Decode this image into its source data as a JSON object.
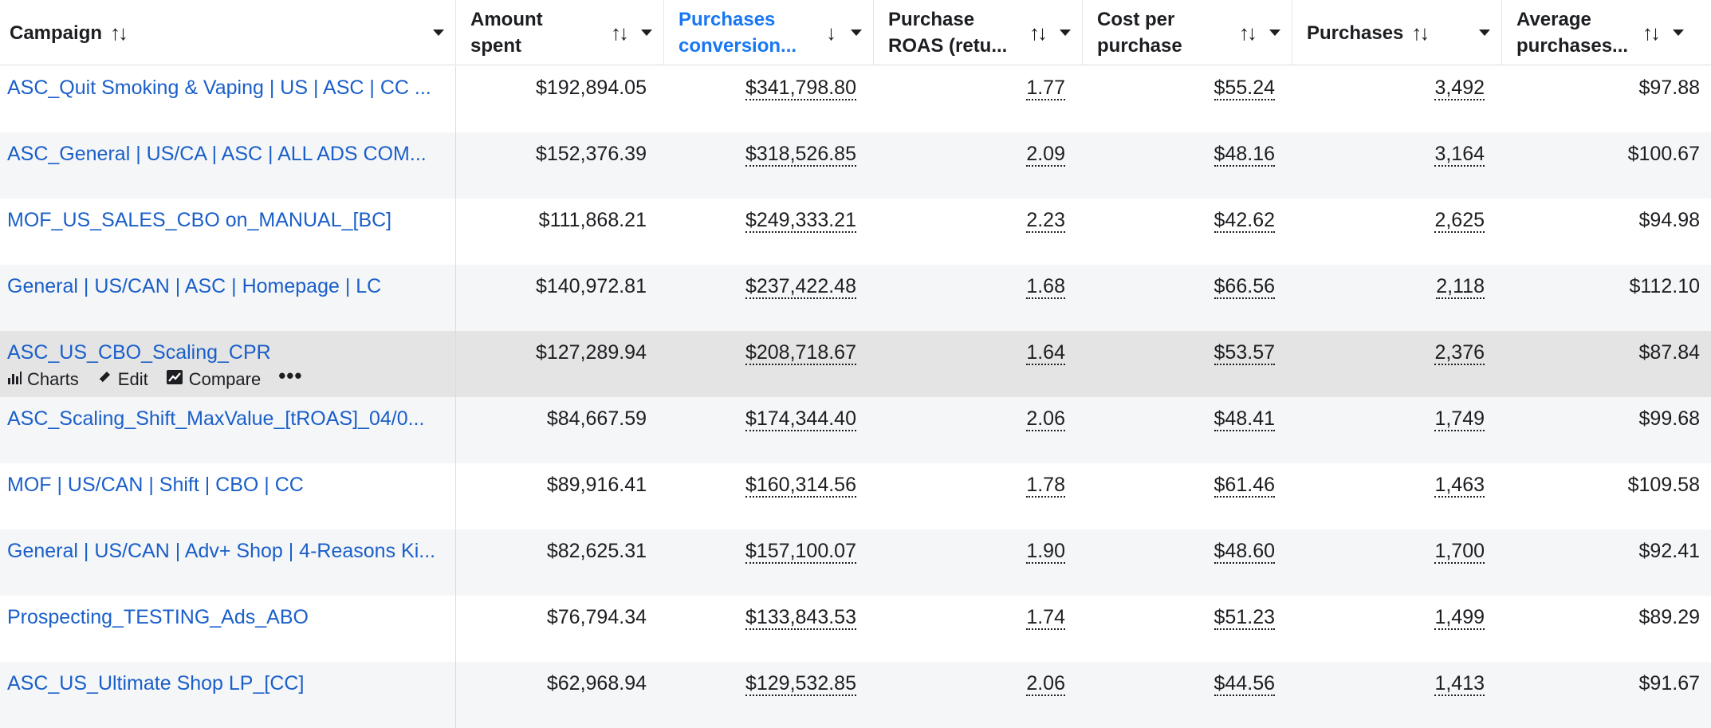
{
  "header": {
    "columns": [
      {
        "label": "Campaign",
        "sort": "both",
        "active": false
      },
      {
        "label": "Amount\nspent",
        "sort": "both",
        "active": false
      },
      {
        "label": "Purchases\nconversion...",
        "sort": "down",
        "active": true
      },
      {
        "label": "Purchase\nROAS (retu...",
        "sort": "both",
        "active": false
      },
      {
        "label": "Cost per\npurchase",
        "sort": "both",
        "active": false
      },
      {
        "label": "Purchases",
        "sort": "both",
        "active": false
      },
      {
        "label": "Average\npurchases...",
        "sort": "both",
        "active": false
      }
    ]
  },
  "row_actions": {
    "charts": "Charts",
    "edit": "Edit",
    "compare": "Compare",
    "more": "•••"
  },
  "rows": [
    {
      "campaign": "ASC_Quit Smoking & Vaping | US | ASC | CC ...",
      "amount_spent": "$192,894.05",
      "conversion_value": "$341,798.80",
      "roas": "1.77",
      "cost_per_purchase": "$55.24",
      "purchases": "3,492",
      "avg_value": "$97.88"
    },
    {
      "campaign": "ASC_General | US/CA | ASC | ALL ADS COM...",
      "amount_spent": "$152,376.39",
      "conversion_value": "$318,526.85",
      "roas": "2.09",
      "cost_per_purchase": "$48.16",
      "purchases": "3,164",
      "avg_value": "$100.67"
    },
    {
      "campaign": "MOF_US_SALES_CBO on_MANUAL_[BC]",
      "amount_spent": "$111,868.21",
      "conversion_value": "$249,333.21",
      "roas": "2.23",
      "cost_per_purchase": "$42.62",
      "purchases": "2,625",
      "avg_value": "$94.98"
    },
    {
      "campaign": "General | US/CAN | ASC | Homepage | LC",
      "amount_spent": "$140,972.81",
      "conversion_value": "$237,422.48",
      "roas": "1.68",
      "cost_per_purchase": "$66.56",
      "purchases": "2,118",
      "avg_value": "$112.10"
    },
    {
      "campaign": "ASC_US_CBO_Scaling_CPR",
      "amount_spent": "$127,289.94",
      "conversion_value": "$208,718.67",
      "roas": "1.64",
      "cost_per_purchase": "$53.57",
      "purchases": "2,376",
      "avg_value": "$87.84"
    },
    {
      "campaign": "ASC_Scaling_Shift_MaxValue_[tROAS]_04/0...",
      "amount_spent": "$84,667.59",
      "conversion_value": "$174,344.40",
      "roas": "2.06",
      "cost_per_purchase": "$48.41",
      "purchases": "1,749",
      "avg_value": "$99.68"
    },
    {
      "campaign": "MOF | US/CAN | Shift | CBO | CC",
      "amount_spent": "$89,916.41",
      "conversion_value": "$160,314.56",
      "roas": "1.78",
      "cost_per_purchase": "$61.46",
      "purchases": "1,463",
      "avg_value": "$109.58"
    },
    {
      "campaign": "General | US/CAN | Adv+ Shop | 4-Reasons Ki...",
      "amount_spent": "$82,625.31",
      "conversion_value": "$157,100.07",
      "roas": "1.90",
      "cost_per_purchase": "$48.60",
      "purchases": "1,700",
      "avg_value": "$92.41"
    },
    {
      "campaign": "Prospecting_TESTING_Ads_ABO",
      "amount_spent": "$76,794.34",
      "conversion_value": "$133,843.53",
      "roas": "1.74",
      "cost_per_purchase": "$51.23",
      "purchases": "1,499",
      "avg_value": "$89.29"
    },
    {
      "campaign": "ASC_US_Ultimate Shop LP_[CC]",
      "amount_spent": "$62,968.94",
      "conversion_value": "$129,532.85",
      "roas": "2.06",
      "cost_per_purchase": "$44.56",
      "purchases": "1,413",
      "avg_value": "$91.67"
    }
  ]
}
